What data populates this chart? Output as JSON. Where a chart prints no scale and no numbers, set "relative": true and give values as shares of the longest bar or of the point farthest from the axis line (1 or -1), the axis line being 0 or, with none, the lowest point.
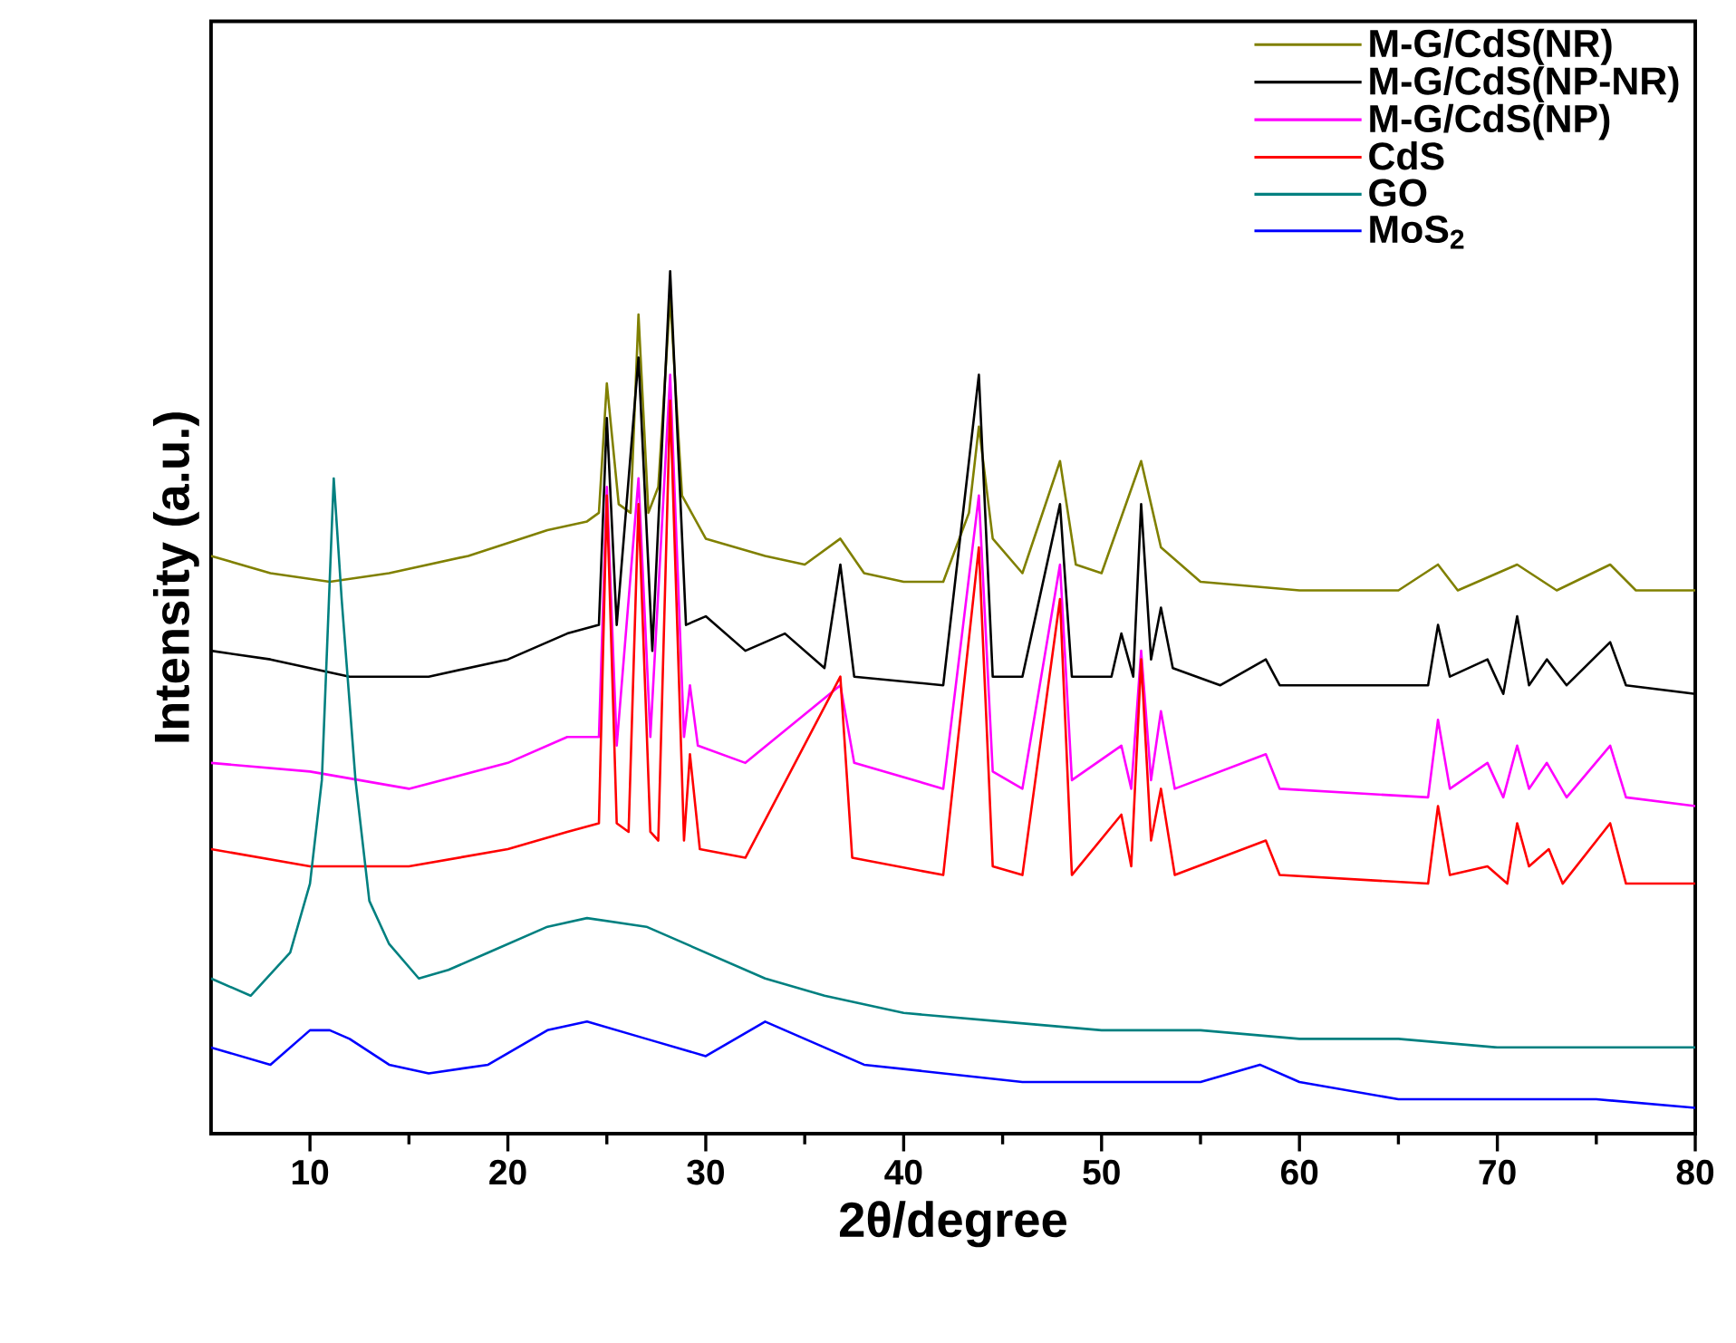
{
  "chart_data": {
    "type": "line",
    "relative": true,
    "xlabel": "2θ/degree",
    "ylabel": "Intensity (a.u.)",
    "xlim": [
      5,
      80
    ],
    "xticks": [
      10,
      {
        "value": 15,
        "label": null
      },
      20,
      {
        "value": 25,
        "label": null
      },
      30,
      {
        "value": 35,
        "label": null
      },
      40,
      {
        "value": 45,
        "label": null
      },
      50,
      {
        "value": 55,
        "label": null
      },
      60,
      {
        "value": 65,
        "label": null
      },
      70,
      {
        "value": 75,
        "label": null
      },
      80
    ],
    "tick_labels": "x",
    "grid": false,
    "legend": "top right",
    "marker": "none",
    "line_style": "solid",
    "series": [
      {
        "name": "M-G/CdS(NR)",
        "color": "#808000",
        "x": [
          5,
          8,
          11,
          14,
          18,
          22,
          24,
          24.6,
          25,
          25.6,
          26.2,
          26.6,
          27.1,
          27.6,
          28.2,
          28.8,
          30,
          33,
          35,
          36.8,
          38,
          40,
          42,
          43.3,
          43.8,
          44.5,
          46,
          47.9,
          48.7,
          50,
          52,
          53,
          55,
          60,
          65,
          67,
          68,
          71,
          73,
          75.7,
          77,
          80
        ],
        "values": [
          0.67,
          0.65,
          0.64,
          0.65,
          0.67,
          0.7,
          0.71,
          0.72,
          0.87,
          0.73,
          0.72,
          0.95,
          0.72,
          0.75,
          0.97,
          0.74,
          0.69,
          0.67,
          0.66,
          0.69,
          0.65,
          0.64,
          0.64,
          0.72,
          0.82,
          0.69,
          0.65,
          0.78,
          0.66,
          0.65,
          0.78,
          0.68,
          0.64,
          0.63,
          0.63,
          0.66,
          0.63,
          0.66,
          0.63,
          0.66,
          0.63,
          0.63
        ]
      },
      {
        "name": "M-G/CdS(NP-NR)",
        "color": "#000000",
        "x": [
          5,
          8,
          12,
          16,
          20,
          23,
          24.6,
          25,
          25.5,
          26.6,
          27.3,
          28.2,
          29,
          30,
          32,
          34,
          36,
          36.8,
          37.5,
          42,
          43.8,
          44.5,
          46,
          47.9,
          48.5,
          50.5,
          51,
          51.6,
          52,
          52.5,
          53,
          53.6,
          56,
          58.3,
          59,
          63,
          66.5,
          67,
          67.6,
          69.5,
          70.3,
          71,
          71.6,
          72.5,
          73.5,
          75.7,
          76.5,
          80
        ],
        "values": [
          0.56,
          0.55,
          0.53,
          0.53,
          0.55,
          0.58,
          0.59,
          0.83,
          0.59,
          0.9,
          0.56,
          1.0,
          0.59,
          0.6,
          0.56,
          0.58,
          0.54,
          0.66,
          0.53,
          0.52,
          0.88,
          0.53,
          0.53,
          0.73,
          0.53,
          0.53,
          0.58,
          0.53,
          0.73,
          0.55,
          0.61,
          0.54,
          0.52,
          0.55,
          0.52,
          0.52,
          0.52,
          0.59,
          0.53,
          0.55,
          0.51,
          0.6,
          0.52,
          0.55,
          0.52,
          0.57,
          0.52,
          0.51
        ]
      },
      {
        "name": "M-G/CdS(NP)",
        "color": "#ff00ff",
        "x": [
          5,
          10,
          15,
          20,
          23,
          24.6,
          25,
          25.5,
          26.6,
          27.2,
          28.2,
          28.9,
          29.2,
          29.6,
          32,
          36.8,
          37.5,
          42,
          43.8,
          44.5,
          46,
          47.9,
          48.5,
          51,
          51.5,
          52,
          52.5,
          53,
          53.7,
          58.3,
          59,
          66.5,
          67,
          67.6,
          69.5,
          70.3,
          71,
          71.6,
          72.5,
          73.5,
          75.7,
          76.5,
          80
        ],
        "values": [
          0.43,
          0.42,
          0.4,
          0.43,
          0.46,
          0.46,
          0.75,
          0.45,
          0.76,
          0.46,
          0.88,
          0.46,
          0.52,
          0.45,
          0.43,
          0.52,
          0.43,
          0.4,
          0.74,
          0.42,
          0.4,
          0.66,
          0.41,
          0.45,
          0.4,
          0.56,
          0.41,
          0.49,
          0.4,
          0.44,
          0.4,
          0.39,
          0.48,
          0.4,
          0.43,
          0.39,
          0.45,
          0.4,
          0.43,
          0.39,
          0.45,
          0.39,
          0.38
        ]
      },
      {
        "name": "CdS",
        "color": "#ff0000",
        "x": [
          5,
          10,
          15,
          20,
          23,
          24.6,
          25,
          25.5,
          26.1,
          26.6,
          27.2,
          27.6,
          28.2,
          28.9,
          29.2,
          29.7,
          32,
          36.8,
          37.4,
          42,
          43.8,
          44.5,
          46,
          47.9,
          48.5,
          51,
          51.5,
          52,
          52.5,
          53,
          53.7,
          58.3,
          59,
          66.5,
          67,
          67.6,
          69.5,
          70.5,
          71,
          71.6,
          72.6,
          73.3,
          75.7,
          76.5,
          80
        ],
        "values": [
          0.33,
          0.31,
          0.31,
          0.33,
          0.35,
          0.36,
          0.74,
          0.36,
          0.35,
          0.73,
          0.35,
          0.34,
          0.85,
          0.34,
          0.44,
          0.33,
          0.32,
          0.53,
          0.32,
          0.3,
          0.68,
          0.31,
          0.3,
          0.62,
          0.3,
          0.37,
          0.31,
          0.55,
          0.34,
          0.4,
          0.3,
          0.34,
          0.3,
          0.29,
          0.38,
          0.3,
          0.31,
          0.29,
          0.36,
          0.31,
          0.33,
          0.29,
          0.36,
          0.29,
          0.29
        ]
      },
      {
        "name": "GO",
        "color": "#008080",
        "x": [
          5,
          7,
          9,
          10,
          10.6,
          11.2,
          11.6,
          12.3,
          13,
          14,
          15.5,
          17,
          19,
          22,
          24,
          27,
          30,
          33,
          36,
          40,
          45,
          50,
          55,
          60,
          65,
          70,
          75,
          80
        ],
        "values": [
          0.18,
          0.16,
          0.21,
          0.29,
          0.41,
          0.76,
          0.62,
          0.41,
          0.27,
          0.22,
          0.18,
          0.19,
          0.21,
          0.24,
          0.25,
          0.24,
          0.21,
          0.18,
          0.16,
          0.14,
          0.13,
          0.12,
          0.12,
          0.11,
          0.11,
          0.1,
          0.1,
          0.1
        ]
      },
      {
        "name": "MoS$_{2}$",
        "color": "#0000ff",
        "x": [
          5,
          8,
          10,
          11,
          12,
          14,
          16,
          19,
          22,
          24,
          27,
          30,
          33,
          35,
          38,
          42,
          46,
          50,
          55,
          58,
          60,
          65,
          70,
          75,
          80
        ],
        "values": [
          0.1,
          0.08,
          0.12,
          0.12,
          0.11,
          0.08,
          0.07,
          0.08,
          0.12,
          0.13,
          0.11,
          0.09,
          0.13,
          0.11,
          0.08,
          0.07,
          0.06,
          0.06,
          0.06,
          0.08,
          0.06,
          0.04,
          0.04,
          0.04,
          0.03
        ]
      }
    ]
  }
}
